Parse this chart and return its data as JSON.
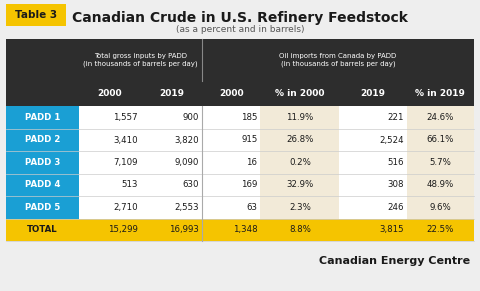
{
  "title": "Canadian Crude in U.S. Refinery Feedstock",
  "subtitle": "(as a percent and in barrels)",
  "table_label": "Table 3",
  "col_group1_header": "Total gross inputs by PADD\n(in thousands of barrels per day)",
  "col_group2_header": "Oil imports from Canada by PADD\n(in thousands of barrels per day)",
  "sub_headers": [
    "2000",
    "2019",
    "2000",
    "% in 2000",
    "2019",
    "% in 2019"
  ],
  "row_labels": [
    "PADD 1",
    "PADD 2",
    "PADD 3",
    "PADD 4",
    "PADD 5",
    "TOTAL"
  ],
  "rows": [
    [
      "1,557",
      "900",
      "185",
      "11.9%",
      "221",
      "24.6%"
    ],
    [
      "3,410",
      "3,820",
      "915",
      "26.8%",
      "2,524",
      "66.1%"
    ],
    [
      "7,109",
      "9,090",
      "16",
      "0.2%",
      "516",
      "5.7%"
    ],
    [
      "513",
      "630",
      "169",
      "32.9%",
      "308",
      "48.9%"
    ],
    [
      "2,710",
      "2,553",
      "63",
      "2.3%",
      "246",
      "9.6%"
    ],
    [
      "15,299",
      "16,993",
      "1,348",
      "8.8%",
      "3,815",
      "22.5%"
    ]
  ],
  "bg_color": "#eeeeee",
  "header_dark_bg": "#2d2d2d",
  "row_label_bg_normal": "#1a9fd4",
  "row_label_bg_total": "#f5c400",
  "row_label_text_normal": "#ffffff",
  "row_label_text_total": "#1a1a1a",
  "total_row_bg": "#f5c400",
  "total_row_text": "#1a1a1a",
  "cell_bg_white": "#ffffff",
  "cell_bg_cream": "#f2ead8",
  "cell_text": "#1a1a1a",
  "brand_text": "Canadian Energy Centre",
  "brand_color": "#1a1a1a",
  "table3_bg": "#f5c400",
  "table3_text": "#1a1a1a"
}
